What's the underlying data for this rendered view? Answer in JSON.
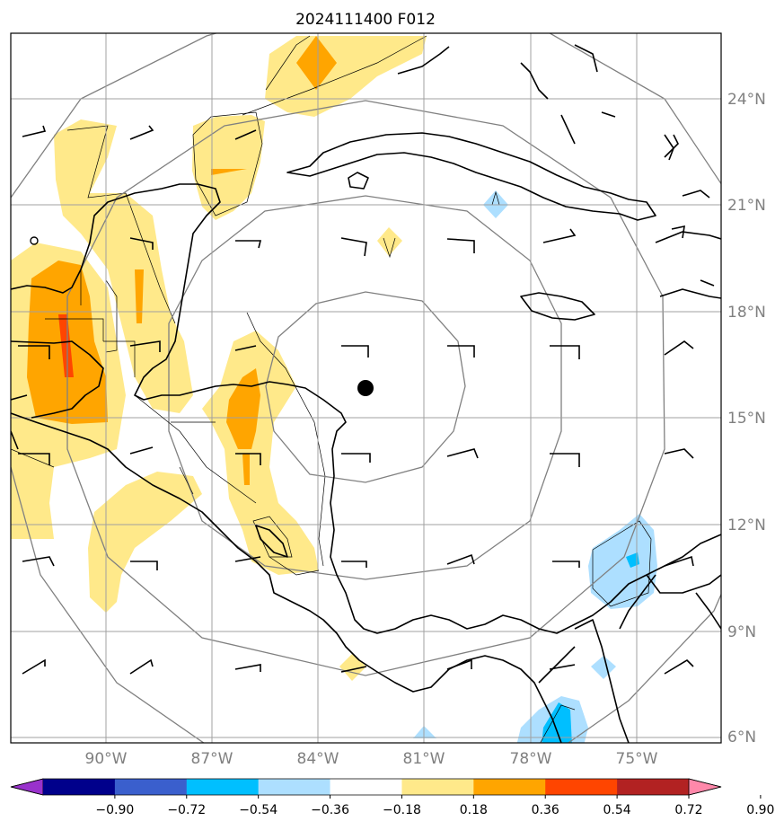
{
  "title": "2024111400 F012",
  "lat_labels": [
    "24°N",
    "21°N",
    "18°N",
    "15°N",
    "12°N",
    "9°N",
    "6°N"
  ],
  "lon_labels": [
    "90°W",
    "87°W",
    "84°W",
    "81°W",
    "78°W",
    "75°W"
  ],
  "colorbar": {
    "ticks": [
      "−0.90",
      "−0.72",
      "−0.54",
      "−0.36",
      "−0.18",
      "0.18",
      "0.36",
      "0.54",
      "0.72",
      "0.90"
    ],
    "colors": [
      "#9932cc",
      "#00008b",
      "#3a5fcd",
      "#00bfff",
      "#addfff",
      "#ffffff",
      "#ffe98a",
      "#ffa500",
      "#ff4500",
      "#b22222",
      "#ff88aa"
    ]
  },
  "colors": {
    "coast": "#000000",
    "range_rings": "#808080",
    "grid": "#a0a0a0",
    "storm_center": "#000000"
  }
}
